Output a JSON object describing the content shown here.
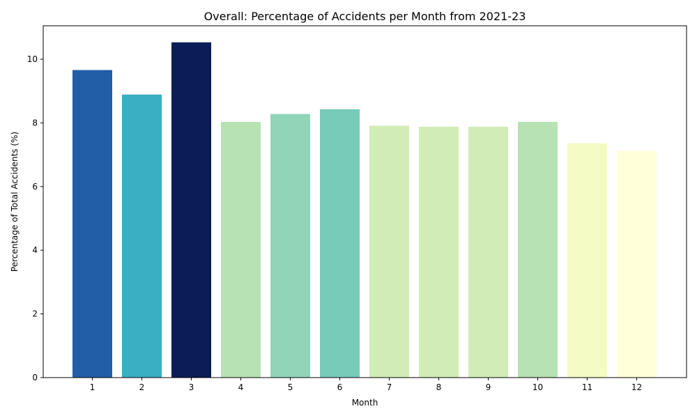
{
  "chart_data": {
    "type": "bar",
    "title": "Overall: Percentage of Accidents per Month from 2021-23",
    "xlabel": "Month",
    "ylabel": "Percentage of Total Accidents (%)",
    "categories": [
      "1",
      "2",
      "3",
      "4",
      "5",
      "6",
      "7",
      "8",
      "9",
      "10",
      "11",
      "12"
    ],
    "values": [
      9.66,
      8.89,
      10.53,
      8.03,
      8.28,
      8.43,
      7.91,
      7.88,
      7.88,
      8.03,
      7.36,
      7.12
    ],
    "colors": [
      "#225ea8",
      "#3aafc3",
      "#0a1d56",
      "#b6e2b4",
      "#91d5b9",
      "#79cbb9",
      "#d2ecb5",
      "#d2ecb5",
      "#d2ecb5",
      "#b6e2b4",
      "#f5fbc4",
      "#ffffd9"
    ],
    "ylim": [
      0,
      11.05
    ],
    "yticks": [
      0,
      2,
      4,
      6,
      8,
      10
    ],
    "grid": false,
    "legend": "none"
  }
}
